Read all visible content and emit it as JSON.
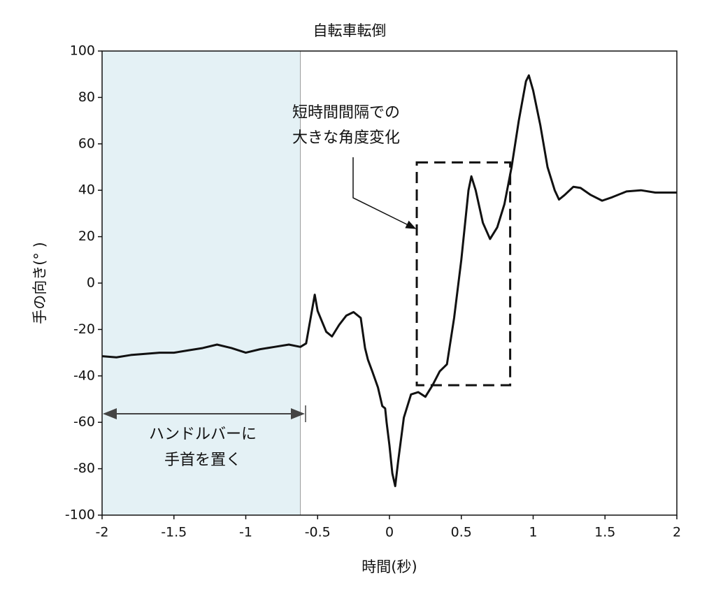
{
  "chart_data": {
    "type": "line",
    "title": "自転車転倒",
    "xlabel": "時間(秒)",
    "ylabel": "手の向き(° )",
    "xlim": [
      -2,
      2
    ],
    "ylim": [
      -100,
      100
    ],
    "xticks": [
      -2,
      -1.5,
      -1,
      -0.5,
      0,
      0.5,
      1,
      1.5,
      2
    ],
    "yticks": [
      -100,
      -80,
      -60,
      -40,
      -20,
      0,
      20,
      40,
      60,
      80,
      100
    ],
    "x": [
      -2,
      -1.9,
      -1.8,
      -1.7,
      -1.6,
      -1.5,
      -1.4,
      -1.3,
      -1.2,
      -1.1,
      -1.0,
      -0.9,
      -0.8,
      -0.7,
      -0.62,
      -0.58,
      -0.54,
      -0.52,
      -0.5,
      -0.48,
      -0.44,
      -0.4,
      -0.35,
      -0.3,
      -0.25,
      -0.2,
      -0.17,
      -0.15,
      -0.12,
      -0.08,
      -0.05,
      -0.03,
      -0.02,
      0.0,
      0.02,
      0.04,
      0.06,
      0.1,
      0.15,
      0.2,
      0.25,
      0.3,
      0.35,
      0.4,
      0.45,
      0.5,
      0.55,
      0.57,
      0.6,
      0.65,
      0.7,
      0.75,
      0.8,
      0.85,
      0.9,
      0.95,
      0.97,
      1.0,
      1.05,
      1.1,
      1.15,
      1.18,
      1.22,
      1.28,
      1.33,
      1.4,
      1.48,
      1.55,
      1.65,
      1.75,
      1.85,
      2.0
    ],
    "series": [
      {
        "name": "手の向き",
        "color": "#111111",
        "values": [
          -31.5,
          -32,
          -31,
          -30.5,
          -30,
          -30,
          -29,
          -28,
          -26.5,
          -28,
          -30,
          -28.5,
          -27.5,
          -26.5,
          -27.5,
          -26,
          -12,
          -5,
          -12,
          -15,
          -21,
          -23,
          -18,
          -14,
          -12.5,
          -15,
          -28,
          -33,
          -38,
          -45,
          -53,
          -54,
          -60,
          -70,
          -82,
          -87.5,
          -77,
          -58,
          -48,
          -47,
          -49,
          -44,
          -38,
          -35,
          -15,
          10,
          40,
          46,
          40,
          26,
          19,
          24,
          34,
          50,
          70,
          87,
          89.5,
          83,
          68,
          50,
          40,
          36,
          38,
          41.5,
          41,
          38,
          35.5,
          37,
          39.5,
          40,
          39,
          39
        ]
      }
    ],
    "shade": {
      "xlim": [
        -2,
        -0.62
      ],
      "color": "#e4f1f5"
    },
    "box": {
      "xlim": [
        0.19,
        0.84
      ],
      "ylim": [
        -44,
        52
      ]
    },
    "annotations": [
      {
        "lines": [
          "短時間間隔での",
          "大きな角度変化"
        ]
      },
      {
        "lines": [
          "ハンドルバーに",
          "手首を置く"
        ]
      }
    ]
  }
}
